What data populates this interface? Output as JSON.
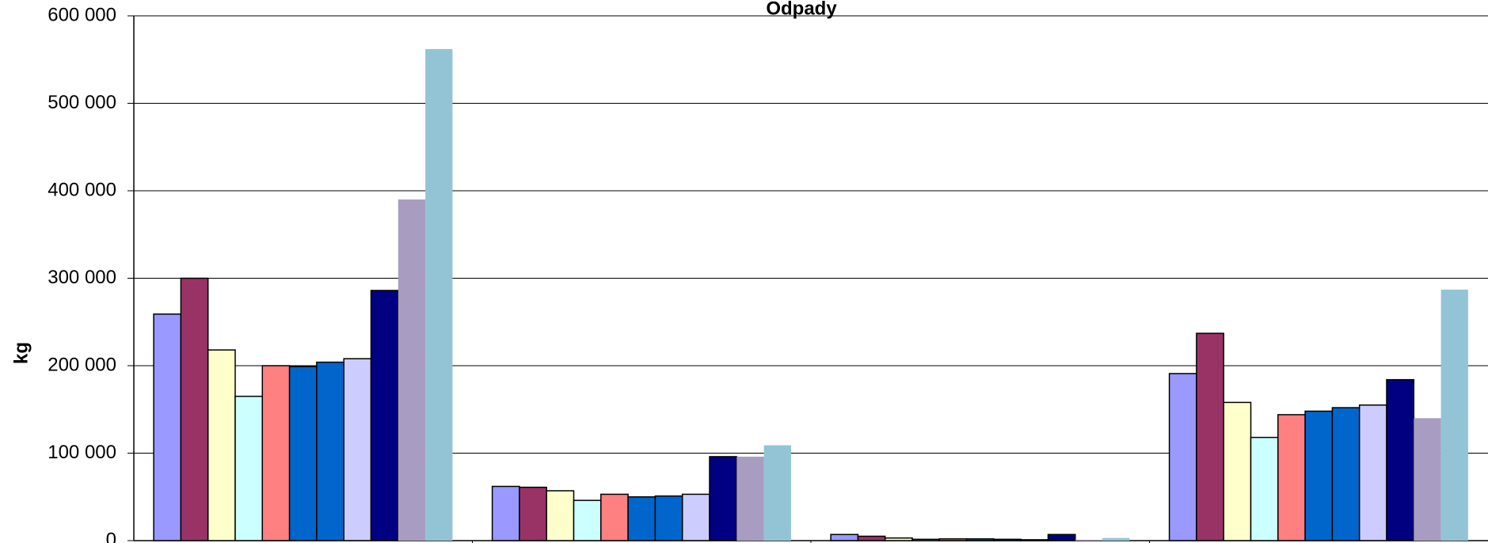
{
  "chart_data": {
    "type": "bar",
    "title": "Odpady",
    "y_label": "kg",
    "categories": [
      null,
      null,
      null,
      null
    ],
    "ylim": [
      0,
      600000
    ],
    "yticks": [
      0,
      {
        "value": 100000,
        "label": "100 000"
      },
      {
        "value": 200000,
        "label": "200 000"
      },
      {
        "value": 300000,
        "label": "300 000"
      },
      {
        "value": 400000,
        "label": "400 000"
      },
      {
        "value": 500000,
        "label": "500 000"
      },
      {
        "value": 600000,
        "label": "600 000"
      }
    ],
    "grid": true,
    "series": [
      {
        "color": "#9999ff",
        "values": [
          259000,
          62000,
          7000,
          191000
        ]
      },
      {
        "color": "#993366",
        "values": [
          300000,
          61000,
          5000,
          237000
        ]
      },
      {
        "color": "#ffffcc",
        "values": [
          218000,
          57000,
          3000,
          158000
        ]
      },
      {
        "color": "#ccffff",
        "values": [
          165000,
          46000,
          1500,
          118000
        ]
      },
      {
        "color": "#ff8080",
        "values": [
          200000,
          53000,
          2000,
          144000
        ]
      },
      {
        "color": "#0066cc",
        "values": [
          199000,
          50000,
          2000,
          148000
        ]
      },
      {
        "color": "#0066cc",
        "values": [
          204000,
          51000,
          1500,
          152000
        ]
      },
      {
        "color": "#ccccff",
        "values": [
          208000,
          53000,
          1000,
          155000
        ]
      },
      {
        "color": "#000080",
        "values": [
          286000,
          96000,
          7000,
          184000
        ]
      },
      {
        "color": "#a89cc0",
        "values": [
          390000,
          96000,
          1000,
          140000
        ]
      },
      {
        "color": "#93c4d6",
        "values": [
          562000,
          109000,
          3000,
          287000
        ]
      }
    ]
  }
}
